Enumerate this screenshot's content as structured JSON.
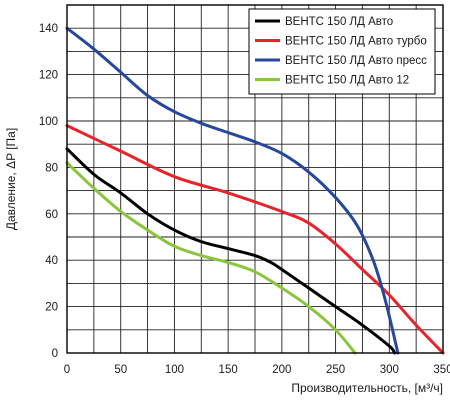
{
  "chart_data": {
    "type": "line",
    "xlabel": "Производительность, [м³/ч]",
    "ylabel": "Давление, ΔP [Па]",
    "xlim": [
      0,
      350
    ],
    "ylim": [
      0,
      150
    ],
    "xticks": [
      "0",
      "50",
      "100",
      "150",
      "200",
      "250",
      "300",
      "350"
    ],
    "yticks": [
      "0",
      "20",
      "40",
      "60",
      "80",
      "100",
      "120",
      "140"
    ],
    "grid": true,
    "legend_position": "top-right",
    "series": [
      {
        "name": "ВЕНТС 150 ЛД Авто",
        "color": "#000000",
        "points": [
          [
            0,
            88
          ],
          [
            25,
            77
          ],
          [
            50,
            69
          ],
          [
            75,
            60
          ],
          [
            100,
            53
          ],
          [
            125,
            48
          ],
          [
            150,
            45
          ],
          [
            175,
            42
          ],
          [
            190,
            39
          ],
          [
            200,
            36
          ],
          [
            225,
            28
          ],
          [
            250,
            20
          ],
          [
            275,
            12
          ],
          [
            300,
            3
          ],
          [
            305,
            0
          ]
        ]
      },
      {
        "name": "ВЕНТС 150 ЛД Авто турбо",
        "color": "#e8232b",
        "points": [
          [
            0,
            98
          ],
          [
            50,
            87
          ],
          [
            100,
            76
          ],
          [
            150,
            69
          ],
          [
            200,
            61
          ],
          [
            225,
            56
          ],
          [
            250,
            47
          ],
          [
            275,
            36
          ],
          [
            300,
            25
          ],
          [
            325,
            12
          ],
          [
            350,
            0
          ]
        ]
      },
      {
        "name": "ВЕНТС 150 ЛД Авто пресс",
        "color": "#26479a",
        "points": [
          [
            0,
            140
          ],
          [
            25,
            131
          ],
          [
            50,
            121
          ],
          [
            75,
            111
          ],
          [
            100,
            104
          ],
          [
            125,
            99
          ],
          [
            150,
            95
          ],
          [
            175,
            91
          ],
          [
            200,
            86
          ],
          [
            225,
            78
          ],
          [
            250,
            67
          ],
          [
            270,
            55
          ],
          [
            285,
            40
          ],
          [
            295,
            25
          ],
          [
            302,
            12
          ],
          [
            308,
            0
          ]
        ]
      },
      {
        "name": "ВЕНТС 150 ЛД Авто 12",
        "color": "#8bc43f",
        "points": [
          [
            0,
            82
          ],
          [
            25,
            71
          ],
          [
            50,
            61
          ],
          [
            75,
            53
          ],
          [
            100,
            46
          ],
          [
            125,
            42
          ],
          [
            150,
            39
          ],
          [
            175,
            35
          ],
          [
            200,
            28
          ],
          [
            225,
            20
          ],
          [
            250,
            10
          ],
          [
            268,
            0
          ]
        ]
      }
    ]
  }
}
